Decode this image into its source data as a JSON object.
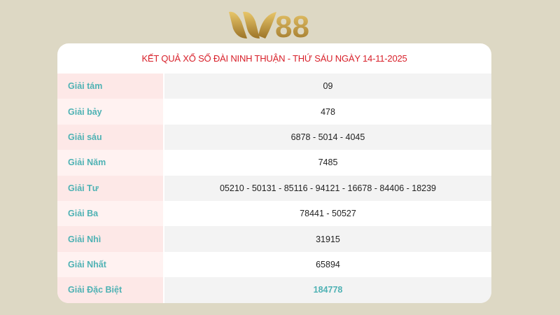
{
  "logo": {
    "text": "W88",
    "color": "#c9a040"
  },
  "title": "KẾT QUẢ XỔ SỐ ĐÀI NINH THUẬN - THỨ SÁU NGÀY 14-11-2025",
  "rows": [
    {
      "label": "Giải tám",
      "value": "09"
    },
    {
      "label": "Giải bảy",
      "value": "478"
    },
    {
      "label": "Giải sáu",
      "value": "6878 - 5014 - 4045"
    },
    {
      "label": "Giải Năm",
      "value": "7485"
    },
    {
      "label": "Giải Tư",
      "value": "05210 - 50131 - 85116 - 94121 - 16678 - 84406 - 18239"
    },
    {
      "label": "Giải Ba",
      "value": "78441 - 50527"
    },
    {
      "label": "Giải Nhì",
      "value": "31915"
    },
    {
      "label": "Giải Nhất",
      "value": "65894"
    },
    {
      "label": "Giải Đặc Biệt",
      "value": "184778"
    }
  ],
  "colors": {
    "title": "#d8202a",
    "label": "#4fb2b4",
    "background": "#ddd8c4"
  }
}
